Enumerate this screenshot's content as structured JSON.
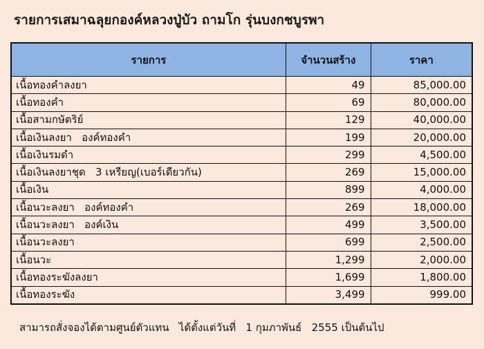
{
  "title": "รายการเสมาฉลุยกองค์หลวงปู่บัว ถามโก รุ่นบงกชบูรพา",
  "table": {
    "headers": [
      "รายการ",
      "จำนวนสร้าง",
      "ราคา"
    ],
    "rows": [
      [
        "เนื้อทองคำลงยา",
        "49",
        "85,000.00"
      ],
      [
        "เนื้อทองคำ",
        "69",
        "80,000.00"
      ],
      [
        "เนื้อสามกษัตริย์",
        "129",
        "40,000.00"
      ],
      [
        "เนื้อเงินลงยา   องค์ทองคำ",
        "199",
        "20,000.00"
      ],
      [
        "เนื้อเงินรมดำ",
        "299",
        "4,500.00"
      ],
      [
        "เนื้อเงินลงยาชุด   3 เหรียญ(เบอร์เดียวกัน)",
        "269",
        "15,000.00"
      ],
      [
        "เนื้อเงิน",
        "899",
        "4,000.00"
      ],
      [
        "เนื้อนวะลงยา   องค์ทองคำ",
        "269",
        "18,000.00"
      ],
      [
        "เนื้อนวะลงยา   องค์เงิน",
        "499",
        "3,500.00"
      ],
      [
        "เนื้อนวะลงยา",
        "699",
        "2,500.00"
      ],
      [
        "เนื้อนวะ",
        "1,299",
        "2,000.00"
      ],
      [
        "เนื้อทองระฆังลงยา",
        "1,699",
        "1,800.00"
      ],
      [
        "เนื้อทองระฆัง",
        "3,499",
        "999.00"
      ]
    ]
  },
  "footer": "สามารถสั่งจองได้ตามศูนย์ตัวแทน   ได้ตั้งแต่วันที่   1 กุมภาพันธ์   2555 เป็นต้นไป",
  "colors": {
    "background": "#fbe9dd",
    "header": "#8eb4e3"
  }
}
